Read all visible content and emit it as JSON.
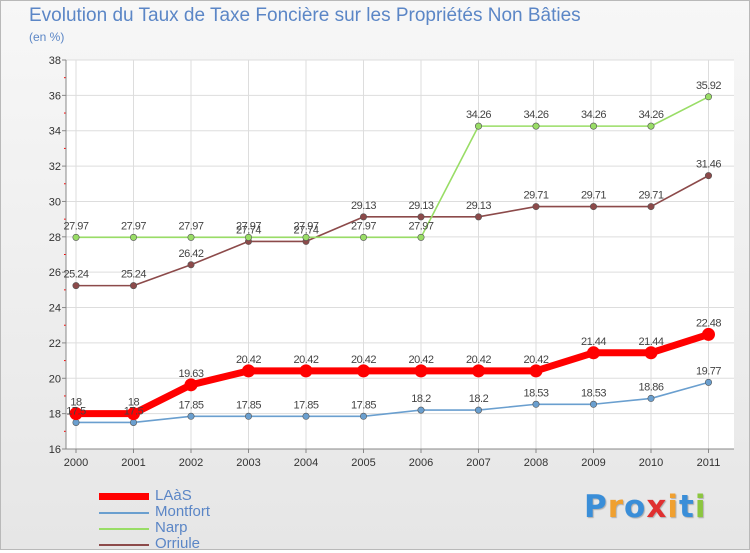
{
  "chart_data": {
    "type": "line",
    "title": "Evolution du Taux de Taxe Foncière sur les Propriétés Non Bâties",
    "ylabel": "(en %)",
    "x": [
      "2000",
      "2001",
      "2002",
      "2003",
      "2004",
      "2005",
      "2006",
      "2007",
      "2008",
      "2009",
      "2010",
      "2011"
    ],
    "ylim": [
      16,
      38
    ],
    "yticks": [
      "16",
      "18",
      "20",
      "22",
      "24",
      "26",
      "28",
      "30",
      "32",
      "34",
      "36",
      "38"
    ],
    "grid": true,
    "series": [
      {
        "name": "LAàS",
        "color": "#ff0000",
        "values": [
          18,
          18,
          19.63,
          20.42,
          20.42,
          20.42,
          20.42,
          20.42,
          20.42,
          21.44,
          21.44,
          22.48
        ],
        "labels": [
          "18",
          "18",
          "19.63",
          "20.42",
          "20.42",
          "20.42",
          "20.42",
          "20.42",
          "20.42",
          "21.44",
          "21.44",
          "22.48"
        ]
      },
      {
        "name": "Montfort",
        "color": "#6a9fcf",
        "values": [
          17.5,
          17.5,
          17.85,
          17.85,
          17.85,
          17.85,
          18.2,
          18.2,
          18.53,
          18.53,
          18.86,
          19.77
        ],
        "labels": [
          "17.5",
          "17.5",
          "17.85",
          "17.85",
          "17.85",
          "17.85",
          "18.2",
          "18.2",
          "18.53",
          "18.53",
          "18.86",
          "19.77"
        ]
      },
      {
        "name": "Narp",
        "color": "#99dd66",
        "values": [
          27.97,
          27.97,
          27.97,
          27.97,
          27.97,
          27.97,
          27.97,
          34.26,
          34.26,
          34.26,
          34.26,
          35.92
        ],
        "labels": [
          "27.97",
          "27.97",
          "27.97",
          "27.97",
          "27.97",
          "27.97",
          "27.97",
          "34.26",
          "34.26",
          "34.26",
          "34.26",
          "35.92"
        ]
      },
      {
        "name": "Orriule",
        "color": "#8c4a4a",
        "values": [
          25.24,
          25.24,
          26.42,
          27.74,
          27.74,
          29.13,
          29.13,
          29.13,
          29.71,
          29.71,
          29.71,
          31.46
        ],
        "labels": [
          "25.24",
          "25.24",
          "26.42",
          "27.74",
          "27.74",
          "29.13",
          "29.13",
          "29.13",
          "29.71",
          "29.71",
          "29.71",
          "31.46"
        ]
      }
    ]
  },
  "logo": {
    "letters": [
      {
        "ch": "P",
        "color": "#3a8ed8"
      },
      {
        "ch": "r",
        "color": "#f0a030"
      },
      {
        "ch": "o",
        "color": "#3a8ed8"
      },
      {
        "ch": "x",
        "color": "#e03030"
      },
      {
        "ch": "i",
        "color": "#f0a030"
      },
      {
        "ch": "t",
        "color": "#3a8ed8"
      },
      {
        "ch": "i",
        "color": "#8cc63f"
      }
    ]
  }
}
